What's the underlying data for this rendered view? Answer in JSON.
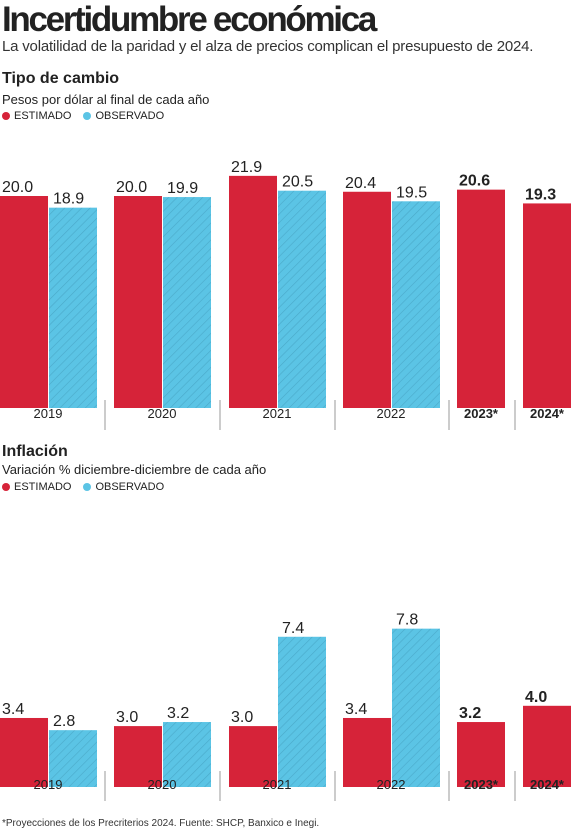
{
  "title": "Incertidumbre económica",
  "subtitle": "La volatilidad de la paridad y el alza de precios complican el presupuesto de 2024.",
  "footnote": "*Proyecciones de los Precriterios 2024. Fuente: SHCP, Banxico e Inegi.",
  "colors": {
    "estimado": "#d62339",
    "observado": "#5bc4e5"
  },
  "chart_data": [
    {
      "type": "bar",
      "title": "Tipo de cambio",
      "subtitle": "Pesos por dólar al final de cada año",
      "legend": [
        "ESTIMADO",
        "OBSERVADO"
      ],
      "categories": [
        "2019",
        "2020",
        "2021",
        "2022",
        "2023*",
        "2024*"
      ],
      "series": [
        {
          "name": "ESTIMADO",
          "values": [
            20.0,
            20.0,
            21.9,
            20.4,
            20.6,
            19.3
          ],
          "labels": [
            "20.0",
            "20.0",
            "21.9",
            "20.4",
            "20.6",
            "19.3"
          ]
        },
        {
          "name": "OBSERVADO",
          "values": [
            18.9,
            19.9,
            20.5,
            19.5,
            null,
            null
          ],
          "labels": [
            "18.9",
            "19.9",
            "20.5",
            "19.5",
            "",
            ""
          ]
        }
      ],
      "projected": [
        false,
        false,
        false,
        false,
        true,
        true
      ]
    },
    {
      "type": "bar",
      "title": "Inflación",
      "subtitle": "Variación % diciembre-diciembre de cada año",
      "legend": [
        "ESTIMADO",
        "OBSERVADO"
      ],
      "categories": [
        "2019",
        "2020",
        "2021",
        "2022",
        "2023*",
        "2024*"
      ],
      "series": [
        {
          "name": "ESTIMADO",
          "values": [
            3.4,
            3.0,
            3.0,
            3.4,
            3.2,
            4.0
          ],
          "labels": [
            "3.4",
            "3.0",
            "3.0",
            "3.4",
            "3.2",
            "4.0"
          ]
        },
        {
          "name": "OBSERVADO",
          "values": [
            2.8,
            3.2,
            7.4,
            7.8,
            null,
            null
          ],
          "labels": [
            "2.8",
            "3.2",
            "7.4",
            "7.8",
            "",
            ""
          ]
        }
      ],
      "projected": [
        false,
        false,
        false,
        false,
        true,
        true
      ]
    }
  ]
}
